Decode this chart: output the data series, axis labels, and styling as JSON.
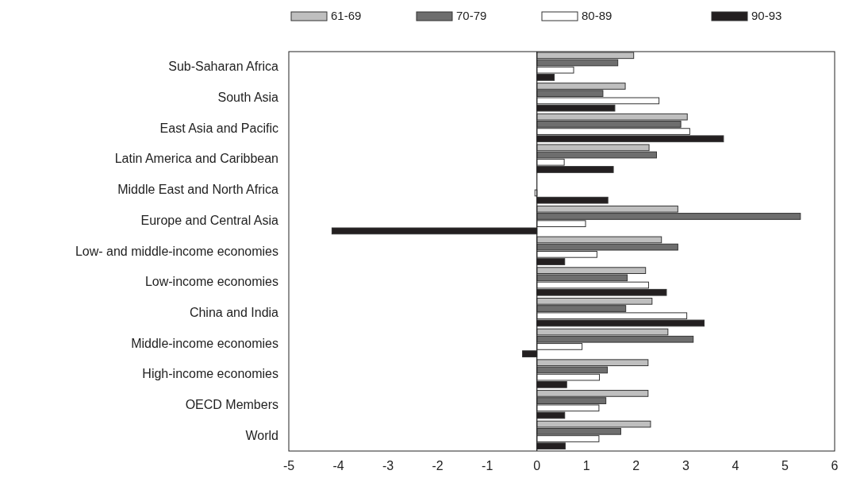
{
  "chart_data": {
    "type": "bar",
    "orientation": "horizontal",
    "categories": [
      "Sub-Saharan Africa",
      "South Asia",
      "East Asia and Pacific",
      "Latin America and Caribbean",
      "Middle East and North Africa",
      "Europe and Central Asia",
      "Low- and middle-income economies",
      "Low-income economies",
      "China and India",
      "Middle-income economies",
      "High-income economies",
      "OECD Members",
      "World"
    ],
    "series": [
      {
        "name": "61-69",
        "color": "#bfbfbf",
        "values": [
          1.95,
          1.78,
          3.03,
          2.26,
          null,
          2.84,
          2.51,
          2.19,
          2.32,
          2.64,
          2.24,
          2.24,
          2.29
        ]
      },
      {
        "name": "70-79",
        "color": "#6e6e6e",
        "values": [
          1.63,
          1.33,
          2.9,
          2.41,
          null,
          5.31,
          2.84,
          1.82,
          1.79,
          3.15,
          1.42,
          1.39,
          1.69
        ]
      },
      {
        "name": "80-89",
        "color": "#ffffff",
        "values": [
          0.74,
          2.46,
          3.08,
          0.55,
          -0.04,
          0.98,
          1.21,
          2.25,
          3.02,
          0.91,
          1.26,
          1.25,
          1.25
        ]
      },
      {
        "name": "90-93",
        "color": "#231f20",
        "values": [
          0.35,
          1.57,
          3.76,
          1.54,
          1.43,
          -4.13,
          0.56,
          2.61,
          3.37,
          -0.29,
          0.6,
          0.56,
          0.57
        ]
      }
    ],
    "xlim": [
      -5,
      6
    ],
    "xticks": [
      -5,
      -4,
      -3,
      -2,
      -1,
      0,
      1,
      2,
      3,
      4,
      5,
      6
    ],
    "legend": "top"
  }
}
